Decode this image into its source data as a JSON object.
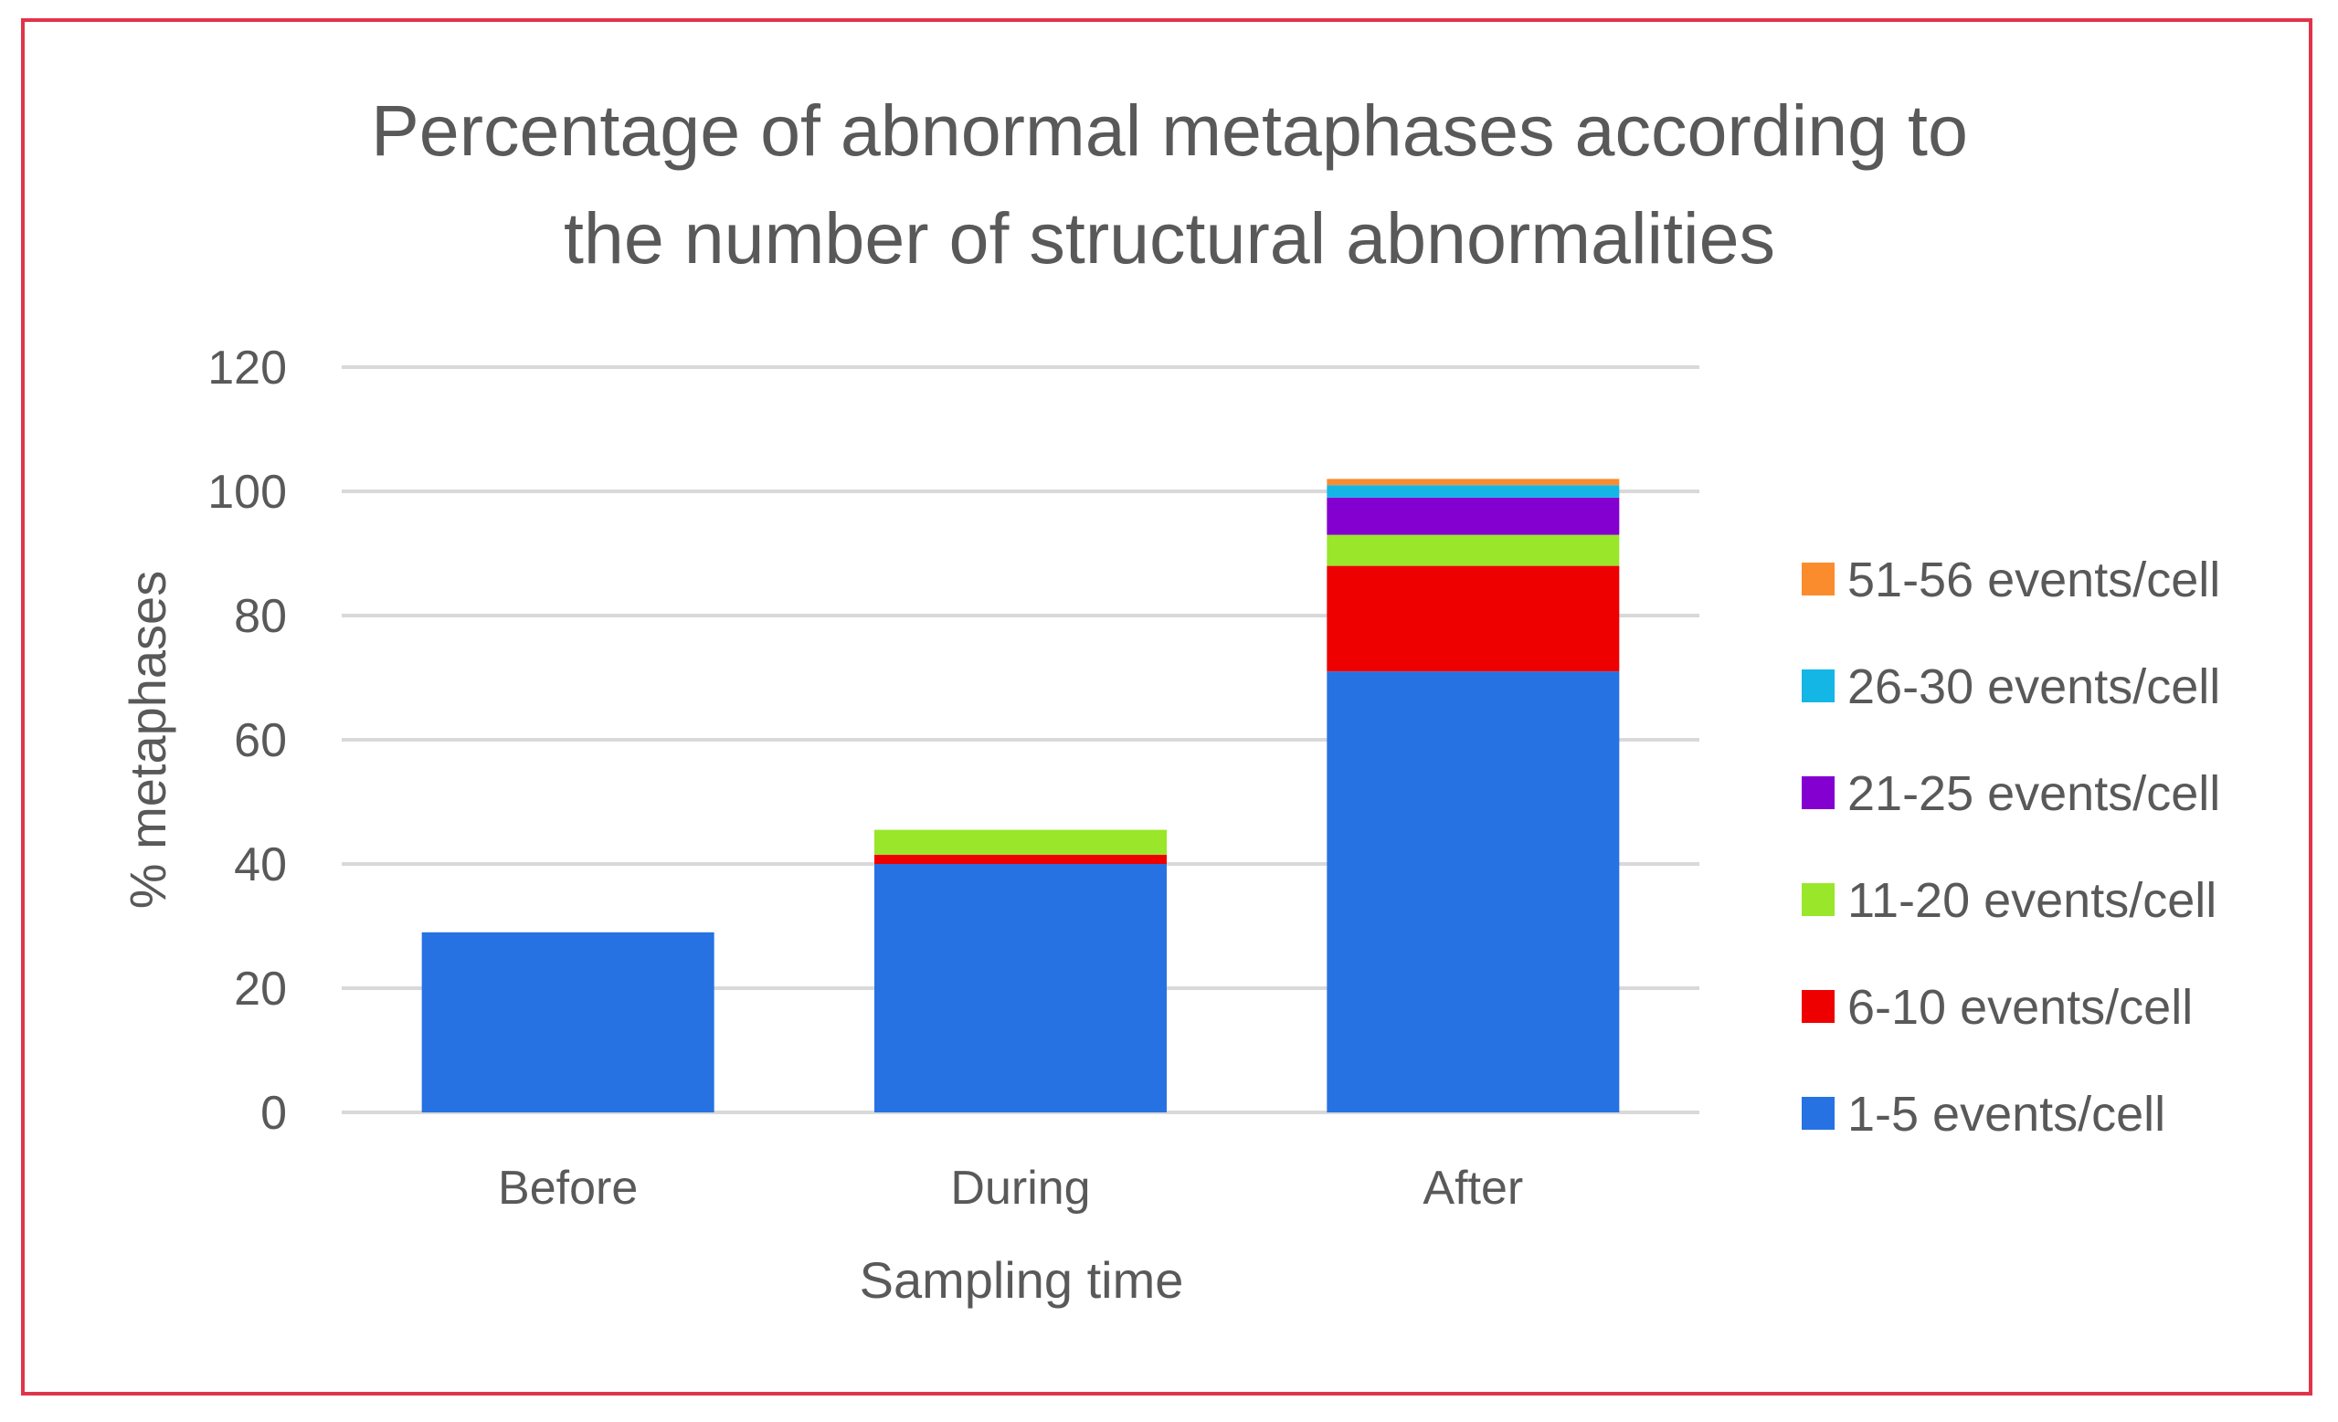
{
  "chart_data": {
    "type": "bar",
    "stacked": true,
    "title_lines": [
      "Percentage of abnormal metaphases according to",
      "the number of structural abnormalities"
    ],
    "xlabel": "Sampling time",
    "ylabel": "% metaphases",
    "ylim": [
      0,
      120
    ],
    "yticks": [
      0,
      20,
      40,
      60,
      80,
      100,
      120
    ],
    "categories": [
      "Before",
      "During",
      "After"
    ],
    "grid": true,
    "legend_position": "right",
    "series": [
      {
        "name": "1-5 events/cell",
        "color": "#2672e3",
        "values": [
          29,
          40,
          71
        ]
      },
      {
        "name": "6-10 events/cell",
        "color": "#ee0000",
        "values": [
          0,
          1.5,
          17
        ]
      },
      {
        "name": "11-20 events/cell",
        "color": "#99e62a",
        "values": [
          0,
          4,
          5
        ]
      },
      {
        "name": "21-25 events/cell",
        "color": "#8300d0",
        "values": [
          0,
          0,
          6
        ]
      },
      {
        "name": "26-30 events/cell",
        "color": "#14b6e6",
        "values": [
          0,
          0,
          2
        ]
      },
      {
        "name": "51-56 events/cell",
        "color": "#fb8c2e",
        "values": [
          0,
          0,
          1
        ]
      }
    ]
  },
  "colors": {
    "frame_border": "#e0344a",
    "gridline": "#d9d9d9",
    "text": "#595959"
  }
}
